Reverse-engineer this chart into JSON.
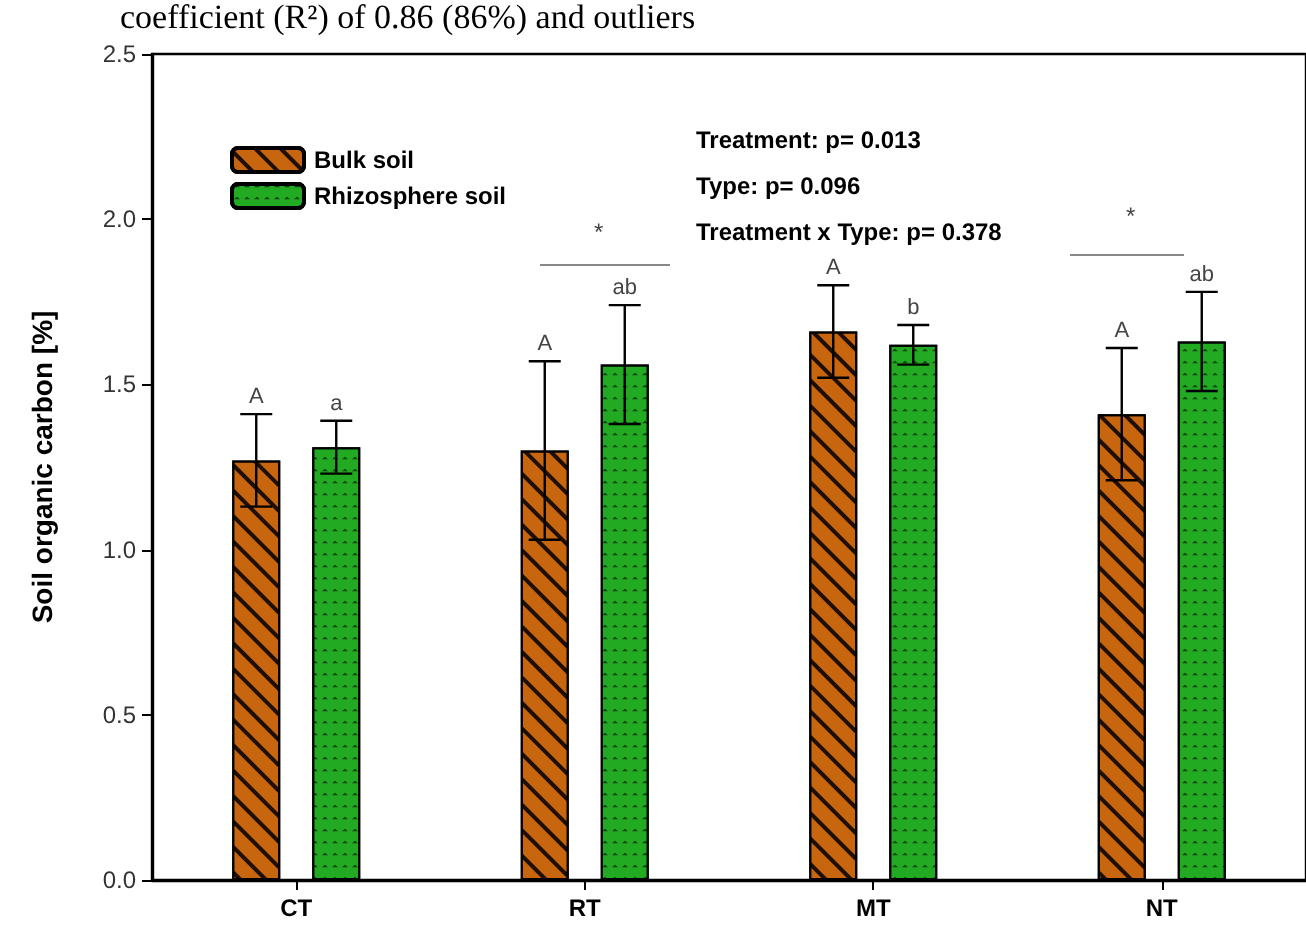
{
  "chart_data": {
    "type": "bar",
    "ylabel": "Soil organic carbon [%]",
    "categories": [
      "CT",
      "RT",
      "MT",
      "NT"
    ],
    "series": [
      {
        "name": "Bulk soil",
        "color": "#c8650f",
        "values": [
          1.27,
          1.3,
          1.66,
          1.41
        ],
        "errors": [
          0.14,
          0.27,
          0.14,
          0.2
        ]
      },
      {
        "name": "Rhizosphere soil",
        "color": "#22aa22",
        "values": [
          1.31,
          1.56,
          1.62,
          1.63
        ],
        "errors": [
          0.08,
          0.18,
          0.06,
          0.15
        ]
      }
    ],
    "ylim": [
      0,
      2.5
    ],
    "yticks": [
      {
        "value": 0,
        "label": "0.0"
      },
      {
        "value": 0.5,
        "label": "0.5"
      },
      {
        "value": 1,
        "label": "1.0"
      },
      {
        "value": 1.5,
        "label": "1.5"
      },
      {
        "value": 2,
        "label": "2.0"
      },
      {
        "value": 2.5,
        "label": "2.5"
      }
    ],
    "annotations": [
      "coefficient (R²) of 0.86 (86%) and outliers",
      "Treatment: p= 0.013",
      "Type: p= 0.096",
      "Treatment x Type: p= 0.378",
      "*",
      "*",
      "A",
      "A",
      "A",
      "A",
      "a",
      "ab",
      "b",
      "ab"
    ],
    "legend": "top left",
    "grid": false
  }
}
